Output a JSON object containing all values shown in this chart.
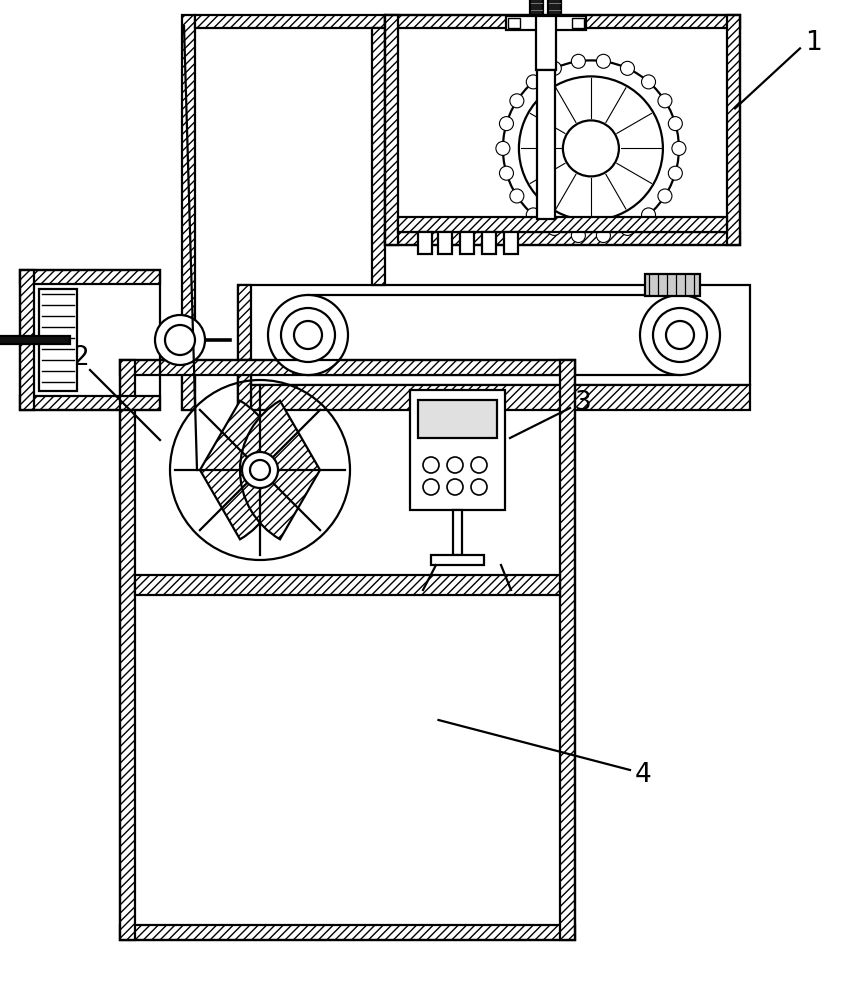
{
  "bg_color": "#ffffff",
  "lw": 1.6,
  "hatch": "////",
  "label_1": "1",
  "label_2": "2",
  "label_3": "3",
  "label_4": "4",
  "label_fontsize": 19
}
